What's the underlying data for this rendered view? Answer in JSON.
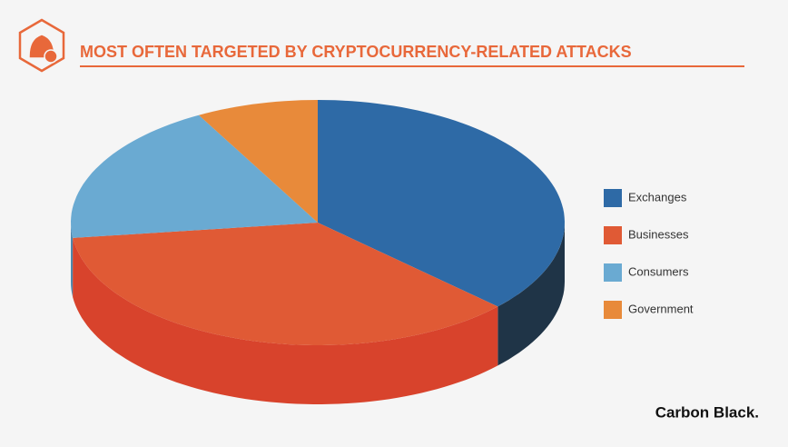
{
  "chart_data": {
    "type": "pie3d",
    "title": "MOST OFTEN TARGETED BY CRYPTOCURRENCY-RELATED ATTACKS",
    "categories": [
      "Exchanges",
      "Businesses",
      "Consumers",
      "Government"
    ],
    "values": [
      37,
      36,
      19,
      8
    ],
    "colors": [
      "#2e6aa6",
      "#e05a35",
      "#6aaad2",
      "#e88a3a"
    ],
    "side_colors": [
      "#1f3447",
      "#d8432c",
      "#4f88ad",
      "#c96f28"
    ],
    "legend": "right"
  },
  "brand": "Carbon Black."
}
